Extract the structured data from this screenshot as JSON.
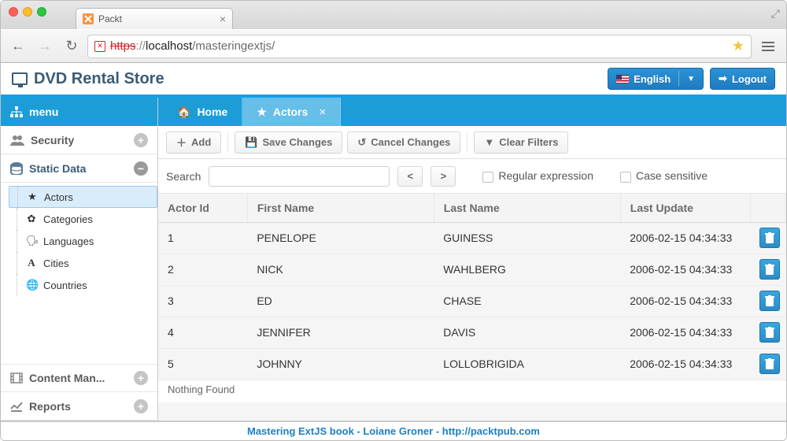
{
  "browser": {
    "tab_title": "Packt",
    "url_scheme": "://",
    "url_https": "https",
    "url_host": "localhost",
    "url_path": "/masteringextjs/"
  },
  "header": {
    "app_title": "DVD Rental Store",
    "language_label": "English",
    "logout_label": "Logout"
  },
  "sidebar": {
    "menu_label": "menu",
    "groups": {
      "security": "Security",
      "static_data": "Static Data",
      "content_man": "Content Man...",
      "reports": "Reports"
    },
    "tree": {
      "actors": "Actors",
      "categories": "Categories",
      "languages": "Languages",
      "cities": "Cities",
      "countries": "Countries"
    }
  },
  "tabs": {
    "home": "Home",
    "actors": "Actors"
  },
  "toolbar": {
    "add": "Add",
    "save": "Save Changes",
    "cancel": "Cancel Changes",
    "clear": "Clear Filters"
  },
  "search": {
    "label": "Search",
    "prev": "<",
    "next": ">",
    "regex_label": "Regular expression",
    "case_label": "Case sensitive"
  },
  "grid": {
    "columns": {
      "id": "Actor Id",
      "first": "First Name",
      "last": "Last Name",
      "update": "Last Update"
    },
    "rows": [
      {
        "id": "1",
        "first": "PENELOPE",
        "last": "GUINESS",
        "update": "2006-02-15 04:34:33"
      },
      {
        "id": "2",
        "first": "NICK",
        "last": "WAHLBERG",
        "update": "2006-02-15 04:34:33"
      },
      {
        "id": "3",
        "first": "ED",
        "last": "CHASE",
        "update": "2006-02-15 04:34:33"
      },
      {
        "id": "4",
        "first": "JENNIFER",
        "last": "DAVIS",
        "update": "2006-02-15 04:34:33"
      },
      {
        "id": "5",
        "first": "JOHNNY",
        "last": "LOLLOBRIGIDA",
        "update": "2006-02-15 04:34:33"
      }
    ],
    "status": "Nothing Found"
  },
  "footer": {
    "text": "Mastering ExtJS book - Loiane Groner - http://packtpub.com"
  },
  "colors": {
    "primary_blue": "#1d9dd8",
    "header_text": "#3a5b78",
    "button_blue_top": "#2a93d5",
    "button_blue_bottom": "#1f7cc0",
    "tab_active": "#66bee9",
    "row_selected": "#d9ecfb",
    "border_gray": "#c9c9c9"
  }
}
